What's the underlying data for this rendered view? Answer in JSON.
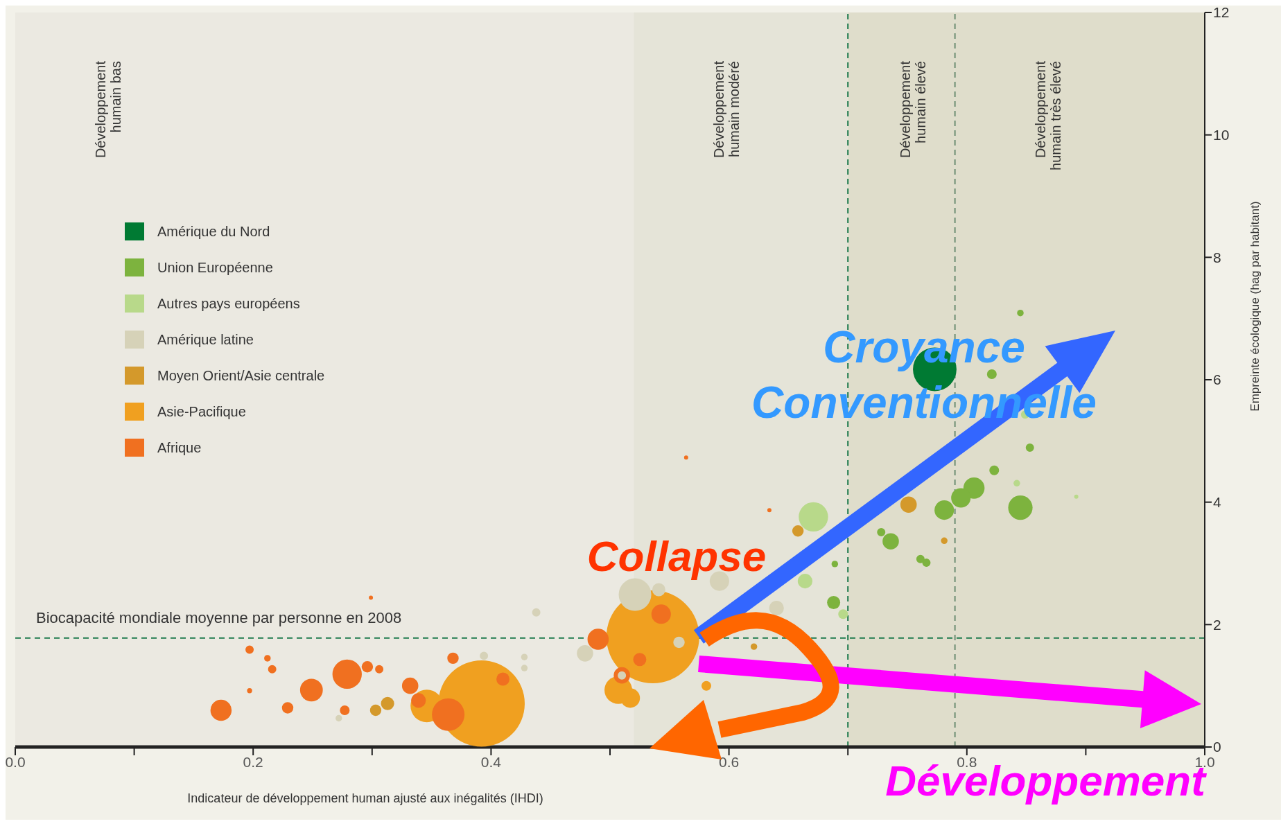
{
  "chart_data": {
    "type": "bubble",
    "xlabel": "Indicateur de développement human ajusté aux inégalités (IHDI)",
    "ylabel": "Empreinte écologique (hag par habitant)",
    "xlim": [
      0,
      1
    ],
    "ylim": [
      0,
      12
    ],
    "xticks": [
      {
        "value": 0,
        "label": "0.0"
      },
      {
        "value": 0.1,
        "label": null
      },
      {
        "value": 0.2,
        "label": "0.2"
      },
      {
        "value": 0.3,
        "label": null
      },
      {
        "value": 0.4,
        "label": "0.4"
      },
      {
        "value": 0.5,
        "label": null
      },
      {
        "value": 0.6,
        "label": "0.6"
      },
      {
        "value": 0.7,
        "label": null
      },
      {
        "value": 0.8,
        "label": "0.8"
      },
      {
        "value": 0.9,
        "label": null
      },
      {
        "value": 1,
        "label": "1.0"
      }
    ],
    "yticks": [
      0,
      2,
      4,
      6,
      8,
      10,
      12
    ],
    "legend": "top left",
    "bands": [
      {
        "axis": "x",
        "from": 0,
        "to": 0.52,
        "label": "Développement humain bas",
        "color": "#ebe9e1"
      },
      {
        "axis": "x",
        "from": 0.52,
        "to": 0.7,
        "label": "Développement humain modéré",
        "color": "#e5e4d8"
      },
      {
        "axis": "x",
        "from": 0.7,
        "to": 0.79,
        "label": "Développement humain élevé",
        "color": "#dfddcb"
      },
      {
        "axis": "x",
        "from": 0.79,
        "to": 1,
        "label": "Développement humain très élevé",
        "color": "#dfddcb"
      }
    ],
    "ref_lines": [
      {
        "axis": "y",
        "value": 1.78,
        "label": "Biocapacité mondiale moyenne par personne en 2008",
        "color": "#1d7a4c",
        "line_style": "dashed"
      },
      {
        "axis": "x",
        "value": 0.7,
        "label": null,
        "color": "#1d7a4c",
        "line_style": "dashed"
      },
      {
        "axis": "x",
        "value": 0.79,
        "label": null,
        "color": "#6e8f74",
        "line_style": "dashed"
      }
    ],
    "annotations": [
      "Croyance Conventionnelle",
      "Collapse",
      "Développement"
    ],
    "series": [
      {
        "name": "Amérique du Nord",
        "color": "#007a33",
        "x": [
          0.773
        ],
        "values": [
          6.17
        ],
        "sizes": [
          0.22
        ]
      },
      {
        "name": "Union Européenne",
        "color": "#7db33e",
        "x": [
          0.845,
          0.821,
          0.853,
          0.823,
          0.806,
          0.795,
          0.781,
          0.845,
          0.736,
          0.728,
          0.761,
          0.766,
          0.688,
          0.689
        ],
        "values": [
          7.09,
          6.09,
          4.89,
          4.52,
          4.23,
          4.07,
          3.87,
          3.91,
          3.36,
          3.51,
          3.07,
          3.01,
          2.36,
          2.99
        ],
        "sizes": [
          0.005,
          0.011,
          0.008,
          0.011,
          0.052,
          0.044,
          0.044,
          0.069,
          0.031,
          0.008,
          0.008,
          0.008,
          0.02,
          0.005
        ]
      },
      {
        "name": "Autres pays européens",
        "color": "#b8d98a",
        "x": [
          0.671,
          0.664,
          0.696,
          0.842,
          0.892,
          0.849
        ],
        "values": [
          3.76,
          2.71,
          2.17,
          4.31,
          4.09,
          5.43
        ],
        "sizes": [
          0.1,
          0.025,
          0.011,
          0.005,
          0.002,
          0.008
        ]
      },
      {
        "name": "Amérique latine",
        "color": "#d6d2b8",
        "x": [
          0.521,
          0.541,
          0.479,
          0.558,
          0.438,
          0.394,
          0.428,
          0.428,
          0.272,
          0.592,
          0.64,
          0.51
        ],
        "values": [
          2.49,
          2.57,
          1.53,
          1.71,
          2.2,
          1.49,
          1.47,
          1.29,
          0.47,
          2.71,
          2.27,
          1.17
        ],
        "sizes": [
          0.123,
          0.02,
          0.031,
          0.015,
          0.008,
          0.008,
          0.005,
          0.005,
          0.005,
          0.044,
          0.025,
          0.008
        ]
      },
      {
        "name": "Moyen Orient/Asie centrale",
        "color": "#d4992b",
        "x": [
          0.658,
          0.751,
          0.781,
          0.313,
          0.303,
          0.621
        ],
        "values": [
          3.53,
          3.96,
          3.37,
          0.71,
          0.6,
          1.64
        ],
        "sizes": [
          0.015,
          0.031,
          0.005,
          0.02,
          0.015,
          0.005
        ]
      },
      {
        "name": "Asie-Pacifique",
        "color": "#f0a020",
        "x": [
          0.536,
          0.392,
          0.346,
          0.507,
          0.517,
          0.581
        ],
        "values": [
          1.8,
          0.71,
          0.67,
          0.93,
          0.8,
          1.0
        ],
        "sizes": [
          1,
          0.865,
          0.123,
          0.089,
          0.044,
          0.011
        ]
      },
      {
        "name": "Afrique",
        "color": "#f07020",
        "x": [
          0.173,
          0.197,
          0.212,
          0.216,
          0.197,
          0.229,
          0.249,
          0.279,
          0.296,
          0.306,
          0.277,
          0.332,
          0.339,
          0.364,
          0.368,
          0.41,
          0.49,
          0.543,
          0.525,
          0.51,
          0.299,
          0.564,
          0.634
        ],
        "values": [
          0.6,
          1.59,
          1.45,
          1.27,
          0.92,
          0.64,
          0.93,
          1.19,
          1.31,
          1.27,
          0.6,
          1.0,
          0.76,
          0.53,
          1.45,
          1.11,
          1.76,
          2.17,
          1.43,
          1.17,
          2.44,
          4.73,
          3.87
        ],
        "sizes": [
          0.052,
          0.008,
          0.005,
          0.008,
          0.003,
          0.015,
          0.06,
          0.1,
          0.015,
          0.008,
          0.011,
          0.031,
          0.025,
          0.123,
          0.015,
          0.02,
          0.052,
          0.044,
          0.02,
          0.031,
          0.002,
          0.002,
          0.002
        ]
      }
    ]
  }
}
